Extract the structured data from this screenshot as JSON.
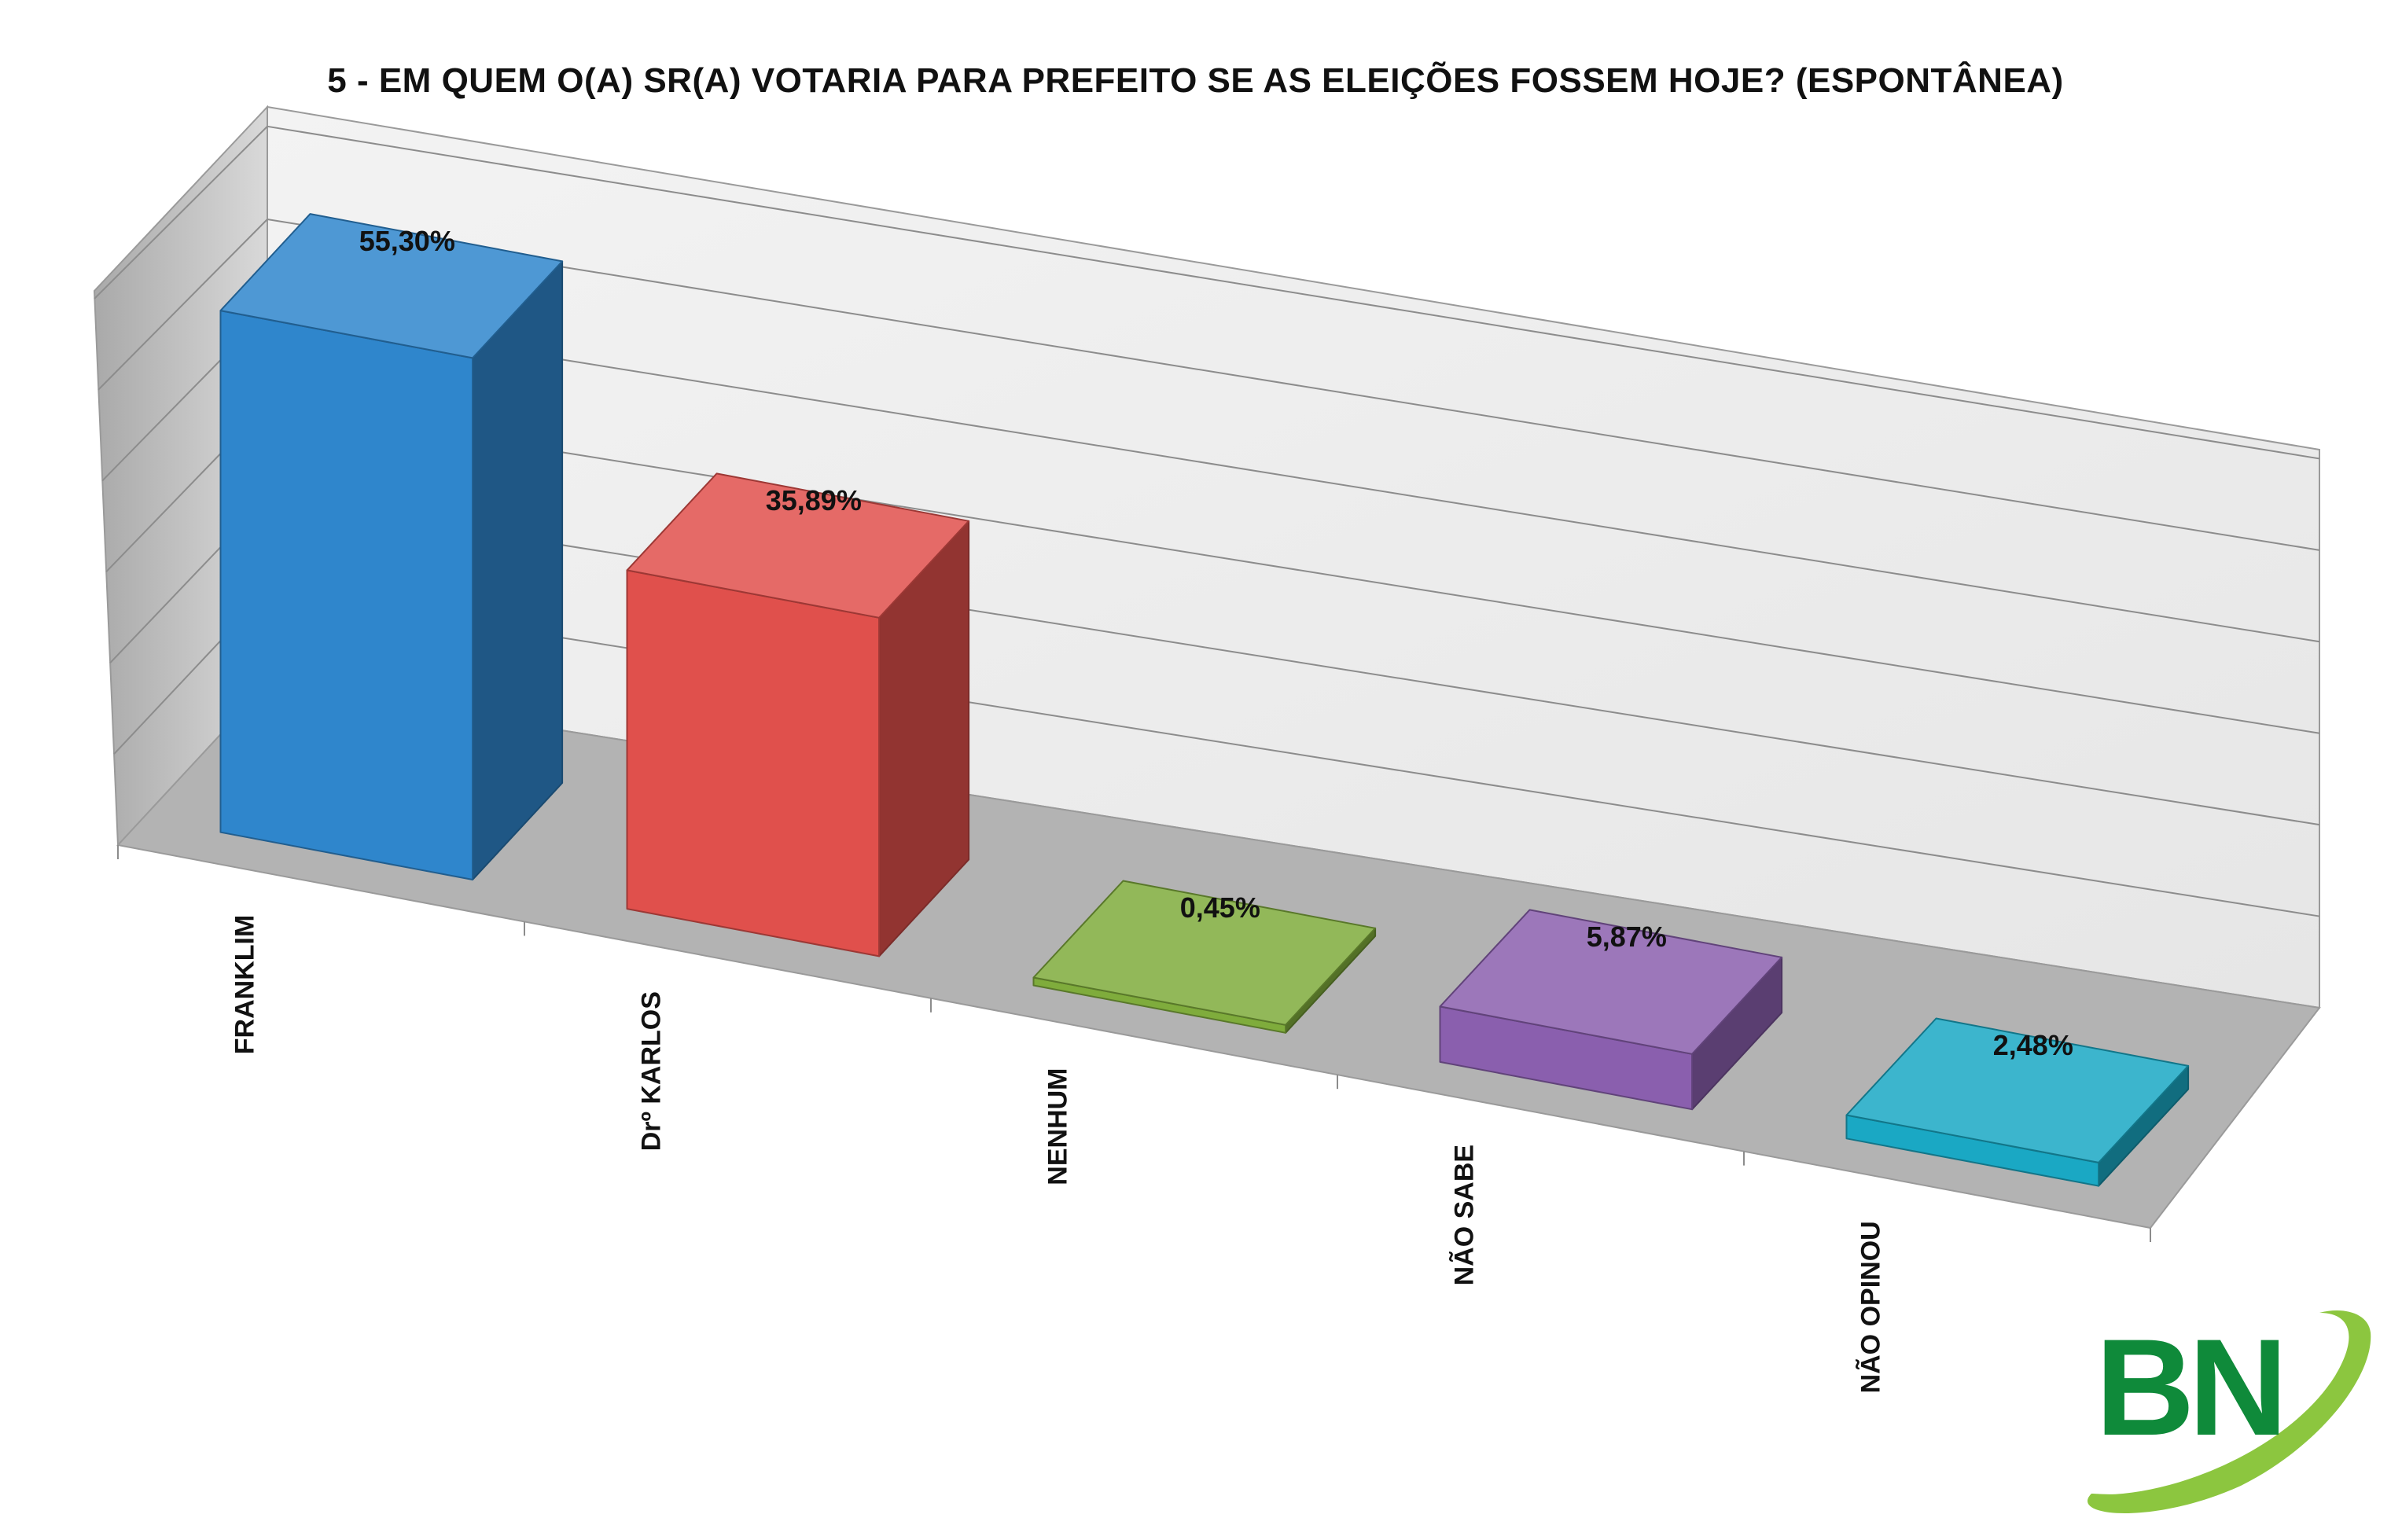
{
  "chart_data": {
    "type": "bar",
    "style": "3d",
    "title": "5 - EM QUEM O(A) SR(A) VOTARIA PARA PREFEITO SE AS ELEIÇÕES FOSSEM HOJE? (ESPONTÂNEA)",
    "categories": [
      "FRANKLIM",
      "Drº KARLOS",
      "NENHUM",
      "NÃO SABE",
      "NÃO OPINOU"
    ],
    "values": [
      55.3,
      35.89,
      0.45,
      5.87,
      2.48
    ],
    "data_labels": [
      "55,30%",
      "35,89%",
      "0,45%",
      "5,87%",
      "2,48%"
    ],
    "colors": [
      "#2f86cc",
      "#e0504c",
      "#7fac3c",
      "#8a5fae",
      "#1aa8c4"
    ],
    "ylim": [
      0,
      60
    ],
    "grid": true,
    "legend": "none"
  },
  "logo": {
    "text": "BN",
    "icon": "bn-logo-icon",
    "color": "#0f8a3a",
    "swoosh_color": "#8cc63f"
  }
}
